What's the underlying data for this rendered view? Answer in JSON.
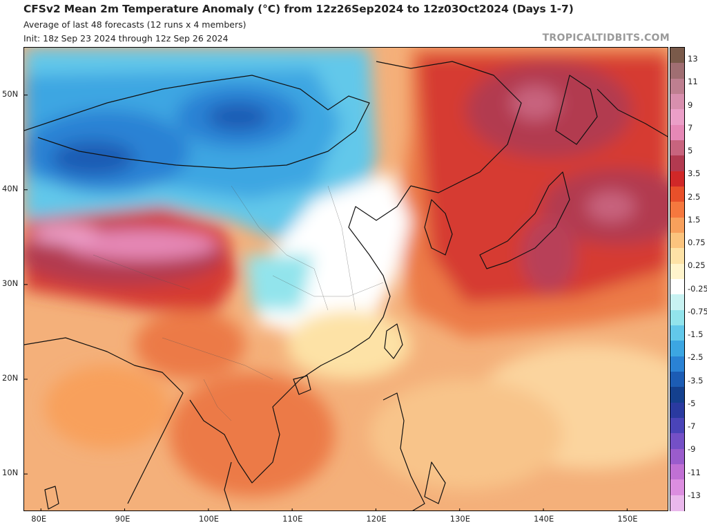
{
  "header": {
    "title": "CFSv2 Mean 2m Temperature Anomaly (°C) from 12z26Sep2024 to 12z03Oct2024 (Days 1-7)",
    "subtitle": "Average of last 48 forecasts (12 runs x 4 members)",
    "init": "Init: 18z Sep 23 2024 through 12z Sep 26 2024",
    "credit": "TROPICALTIDBITS.COM"
  },
  "map": {
    "region": "East Asia",
    "lat_range": [
      6,
      55
    ],
    "lon_range": [
      78,
      155
    ],
    "lat_labels": [
      {
        "lat": 50,
        "label": "50N"
      },
      {
        "lat": 40,
        "label": "40N"
      },
      {
        "lat": 30,
        "label": "30N"
      },
      {
        "lat": 20,
        "label": "20N"
      },
      {
        "lat": 10,
        "label": "10N"
      }
    ],
    "lon_labels": [
      {
        "lon": 80,
        "label": "80E"
      },
      {
        "lon": 90,
        "label": "90E"
      },
      {
        "lon": 100,
        "label": "100E"
      },
      {
        "lon": 110,
        "label": "110E"
      },
      {
        "lon": 120,
        "label": "120E"
      },
      {
        "lon": 130,
        "label": "130E"
      },
      {
        "lon": 140,
        "label": "140E"
      },
      {
        "lon": 150,
        "label": "150E"
      }
    ]
  },
  "colorbar": {
    "labels": [
      "13",
      "11",
      "9",
      "7",
      "5",
      "3.5",
      "2.5",
      "1.5",
      "0.75",
      "0.25",
      "-0.25",
      "-0.75",
      "-1.5",
      "-2.5",
      "-3.5",
      "-5",
      "-7",
      "-9",
      "-11",
      "-13"
    ],
    "colors": [
      "#7a5a4a",
      "#a06e72",
      "#be7f90",
      "#d88fae",
      "#eb9fc8",
      "#e688b6",
      "#c8647e",
      "#b23a50",
      "#d02828",
      "#e8502a",
      "#f5783e",
      "#f8a05c",
      "#fbc47e",
      "#fde2a6",
      "#fff4cc",
      "#ffffff",
      "#c8f2f2",
      "#92e4ec",
      "#62c8ea",
      "#3ca6e2",
      "#2a82d4",
      "#1c5cb4",
      "#14408e",
      "#2a3aa0",
      "#4a44b8",
      "#7450c6",
      "#9a5ccc",
      "#c070d4",
      "#dc8ee0",
      "#eab8ec"
    ]
  }
}
